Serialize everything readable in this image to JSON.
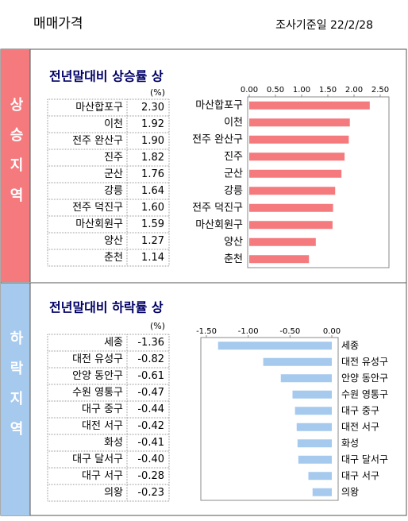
{
  "header": {
    "title": "매매가격",
    "date": "조사기준일 22/2/28"
  },
  "sections": [
    {
      "label": "상승지역",
      "title": "전년말대비 상승률 상",
      "table": {
        "unit": "(%)",
        "rows": [
          [
            "마산합포구",
            "2.30"
          ],
          [
            "이천",
            "1.92"
          ],
          [
            "전주 완산구",
            "1.90"
          ],
          [
            "진주",
            "1.82"
          ],
          [
            "군산",
            "1.76"
          ],
          [
            "강릉",
            "1.64"
          ],
          [
            "전주 덕진구",
            "1.60"
          ],
          [
            "마산회원구",
            "1.59"
          ],
          [
            "양산",
            "1.27"
          ],
          [
            "춘천",
            "1.14"
          ]
        ]
      }
    },
    {
      "label": "하락지역",
      "title": "전년말대비 하락률 상",
      "table": {
        "unit": "(%)",
        "rows": [
          [
            "세종",
            "-1.36"
          ],
          [
            "대전 유성구",
            "-0.82"
          ],
          [
            "안양 동안구",
            "-0.61"
          ],
          [
            "수원 영통구",
            "-0.47"
          ],
          [
            "대구 중구",
            "-0.44"
          ],
          [
            "대전 서구",
            "-0.42"
          ],
          [
            "화성",
            "-0.41"
          ],
          [
            "대구 달서구",
            "-0.40"
          ],
          [
            "대구 서구",
            "-0.28"
          ],
          [
            "의왕",
            "-0.23"
          ]
        ]
      }
    }
  ],
  "chart_data": [
    {
      "type": "bar",
      "orientation": "horizontal",
      "color": "#f47a7e",
      "categories": [
        "마산합포구",
        "이천",
        "전주 완산구",
        "진주",
        "군산",
        "강릉",
        "전주 덕진구",
        "마산회원구",
        "양산",
        "춘천"
      ],
      "values": [
        2.3,
        1.92,
        1.9,
        1.82,
        1.76,
        1.64,
        1.6,
        1.59,
        1.27,
        1.14
      ],
      "xlim": [
        0,
        2.5
      ],
      "xticks": [
        {
          "value": 0,
          "label": "0.00"
        },
        {
          "value": 0.5,
          "label": "0.50"
        },
        {
          "value": 1,
          "label": "1.00"
        },
        {
          "value": 1.5,
          "label": "1.50"
        },
        {
          "value": 2,
          "label": "2.00"
        },
        {
          "value": 2.5,
          "label": "2.50"
        }
      ]
    },
    {
      "type": "bar",
      "orientation": "horizontal",
      "color": "#a6c9ee",
      "categories": [
        "세종",
        "대전 유성구",
        "안양 동안구",
        "수원 영통구",
        "대구 중구",
        "대전 서구",
        "화성",
        "대구 달서구",
        "대구 서구",
        "의왕"
      ],
      "values": [
        -1.36,
        -0.82,
        -0.61,
        -0.47,
        -0.44,
        -0.42,
        -0.41,
        -0.4,
        -0.28,
        -0.23
      ],
      "xlim": [
        -1.5,
        0
      ],
      "xticks": [
        {
          "value": -1.5,
          "label": "-1.50"
        },
        {
          "value": -1,
          "label": "-1.00"
        },
        {
          "value": -0.5,
          "label": "-0.50"
        },
        {
          "value": 0,
          "label": "0.00"
        }
      ]
    }
  ]
}
